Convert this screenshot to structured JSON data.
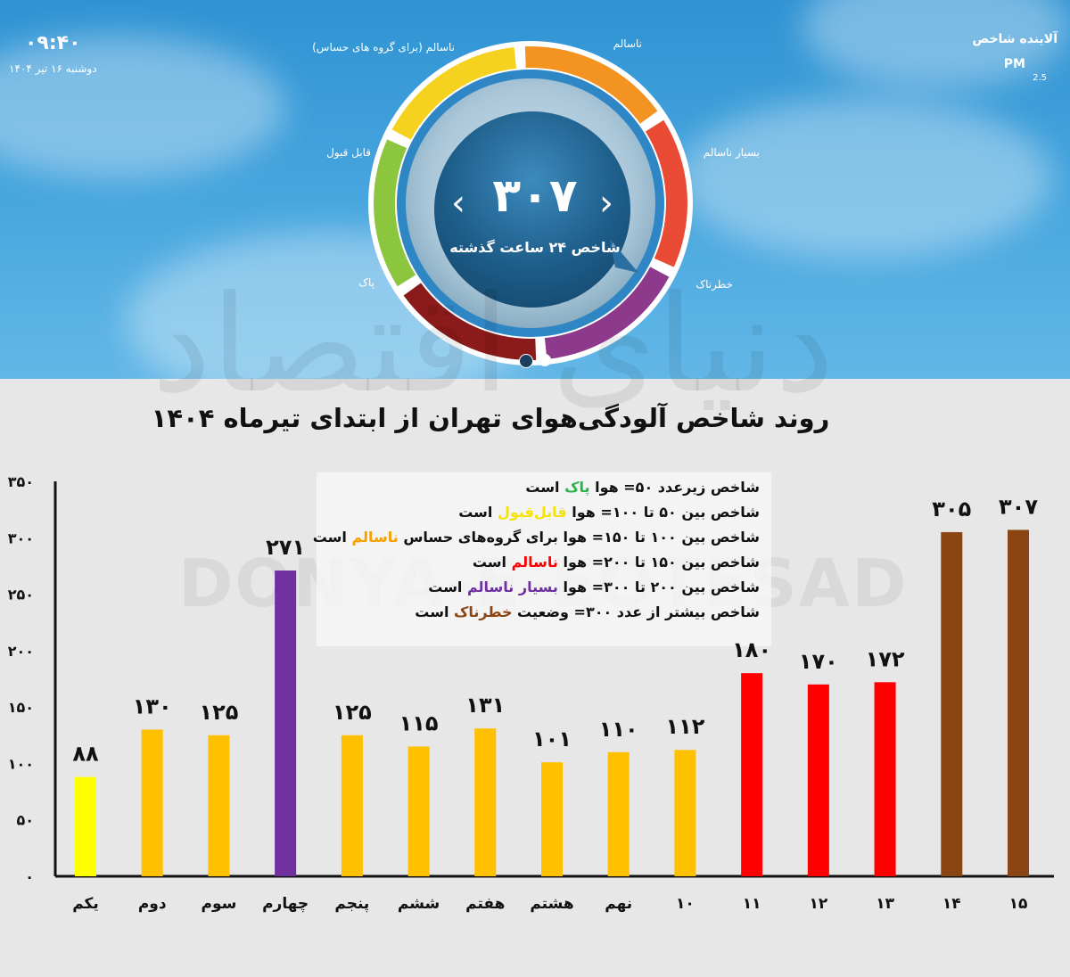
{
  "status": {
    "time": "۰۹:۴۰",
    "date": "دوشنبه ۱۶ تیر ۱۴۰۴"
  },
  "pollutant": {
    "title": "آلاینده شاخص",
    "name": "PM",
    "sub": "2.5"
  },
  "gauge": {
    "value": "۳۰۷",
    "caption": "شاخص ۲۴ ساعت گذشته",
    "segments": [
      {
        "label": "پاک",
        "color": "#8cc63f"
      },
      {
        "label": "قابل قبول",
        "color": "#f4d21f"
      },
      {
        "label": "ناسالم (برای گروه های حساس)",
        "color": "#f39322"
      },
      {
        "label": "ناسالم",
        "color": "#e94b35"
      },
      {
        "label": "بسیار ناسالم",
        "color": "#8e3a8c"
      },
      {
        "label": "خطرناک",
        "color": "#8b1a1a"
      }
    ],
    "active_slide": 1,
    "slides": 2
  },
  "watermark": {
    "text": "DONYA-E-EQTESAD",
    "logo": "دنیای اقتصاد"
  },
  "legend": [
    {
      "before": "شاخص زیرعدد ۵۰= هوا ",
      "key": "پاک",
      "after": " است",
      "color": "#2bb34b"
    },
    {
      "before": "شاخص بین ۵۰ تا ۱۰۰= هوا ",
      "key": "قابل‌قبول",
      "after": " است",
      "color": "#f5e400"
    },
    {
      "before": "شاخص بین ۱۰۰ تا ۱۵۰= هوا برای گروه‌های حساس ",
      "key": "ناسالم",
      "after": " است",
      "color": "#f7a000"
    },
    {
      "before": "شاخص بین ۱۵۰ تا ۲۰۰= هوا ",
      "key": "ناسالم",
      "after": " است",
      "color": "#ff0000"
    },
    {
      "before": "شاخص بین ۲۰۰ تا ۳۰۰= هوا ",
      "key": "بسیار ناسالم",
      "after": " است",
      "color": "#7030a0"
    },
    {
      "before": "شاخص بیشتر از عدد ۳۰۰= وضعیت ",
      "key": "خطرناک",
      "after": " است",
      "color": "#8b4513"
    }
  ],
  "chart_data": {
    "type": "bar",
    "title": "روند شاخص آلودگی‌هوای تهران از ابتدای تیرماه ۱۴۰۴",
    "categories": [
      "یکم",
      "دوم",
      "سوم",
      "چهارم",
      "پنجم",
      "ششم",
      "هفتم",
      "هشتم",
      "نهم",
      "۱۰",
      "۱۱",
      "۱۲",
      "۱۳",
      "۱۴",
      "۱۵"
    ],
    "values": [
      88,
      130,
      125,
      271,
      125,
      115,
      131,
      101,
      110,
      112,
      180,
      170,
      172,
      305,
      307
    ],
    "value_labels": [
      "۸۸",
      "۱۳۰",
      "۱۲۵",
      "۲۷۱",
      "۱۲۵",
      "۱۱۵",
      "۱۳۱",
      "۱۰۱",
      "۱۱۰",
      "۱۱۲",
      "۱۸۰",
      "۱۷۰",
      "۱۷۲",
      "۳۰۵",
      "۳۰۷"
    ],
    "colors": [
      "#ffff00",
      "#ffc000",
      "#ffc000",
      "#7030a0",
      "#ffc000",
      "#ffc000",
      "#ffc000",
      "#ffc000",
      "#ffc000",
      "#ffc000",
      "#ff0000",
      "#ff0000",
      "#ff0000",
      "#8b4513",
      "#8b4513"
    ],
    "y_ticks": [
      0,
      50,
      100,
      150,
      200,
      250,
      300,
      350
    ],
    "y_tick_labels": [
      "۰",
      "۵۰",
      "۱۰۰",
      "۱۵۰",
      "۲۰۰",
      "۲۵۰",
      "۳۰۰",
      "۳۵۰"
    ],
    "ylim": [
      0,
      350
    ],
    "grid": false
  }
}
